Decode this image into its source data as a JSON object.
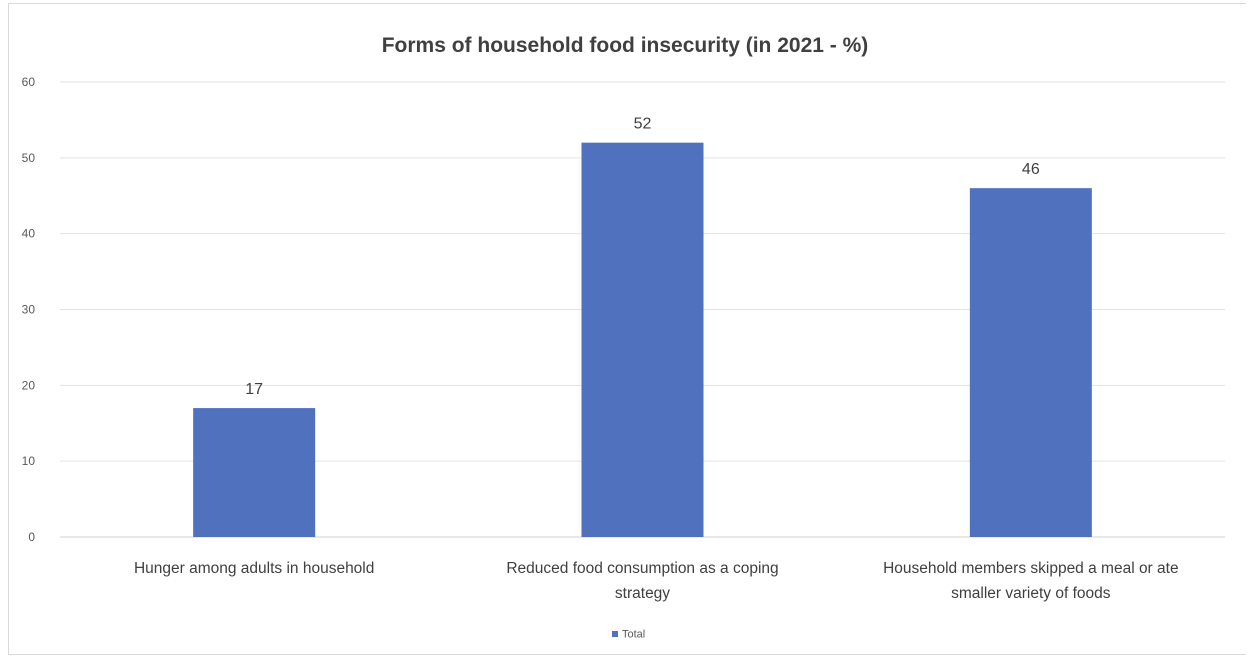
{
  "chart_data": {
    "type": "bar",
    "title": "Forms of household food insecurity (in 2021 - %)",
    "categories": [
      [
        "Hunger among adults in household"
      ],
      [
        "Reduced food consumption as a coping",
        "strategy"
      ],
      [
        "Household members skipped a meal or ate",
        "smaller variety of foods"
      ]
    ],
    "series": [
      {
        "name": "Total",
        "values": [
          17,
          52,
          46
        ],
        "color": "#4f71be"
      }
    ],
    "yticks": [
      0,
      10,
      20,
      30,
      40,
      50,
      60
    ],
    "ylim": [
      0,
      60
    ],
    "grid": true,
    "legend_position": "bottom-center",
    "data_labels": true
  }
}
